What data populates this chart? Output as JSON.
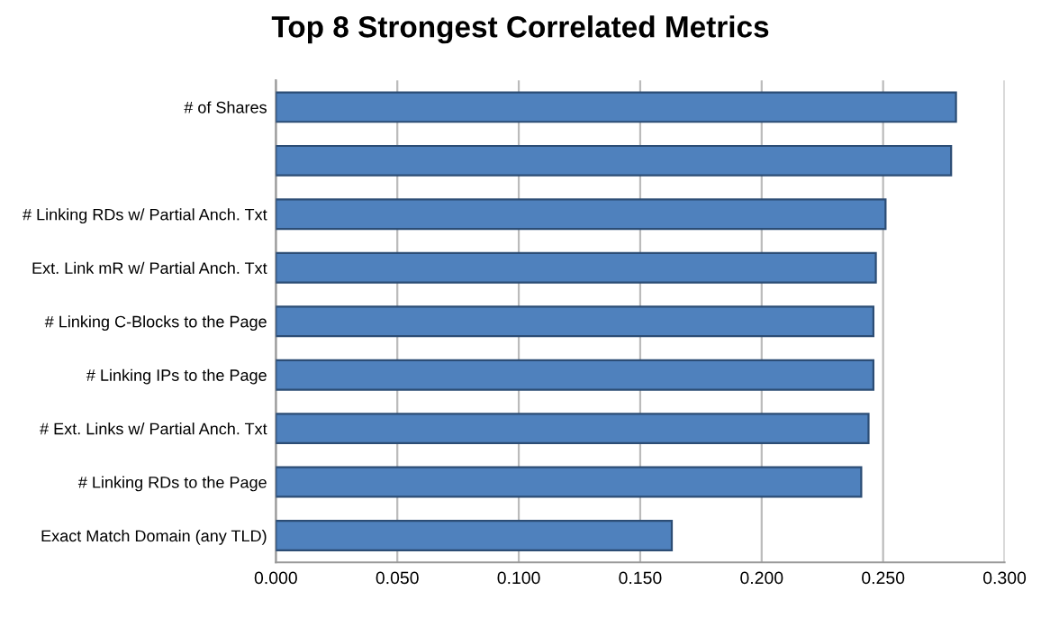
{
  "chart_data": {
    "type": "bar",
    "orientation": "horizontal",
    "title": "Top 8 Strongest Correlated Metrics",
    "categories": [
      "# of Shares",
      null,
      "# Linking RDs w/ Partial Anch. Txt",
      "Ext. Link mR w/ Partial Anch. Txt",
      "# Linking C-Blocks to the Page",
      "# Linking IPs to the Page",
      "# Ext. Links w/ Partial Anch. Txt",
      "# Linking RDs to the Page",
      "Exact Match Domain (any TLD)"
    ],
    "values": [
      0.28,
      0.278,
      0.251,
      0.247,
      0.246,
      0.246,
      0.244,
      0.241,
      0.163
    ],
    "color": "#4f81bd",
    "xlim": [
      0,
      0.3
    ],
    "xticks": [
      {
        "value": 0,
        "label": "0.000"
      },
      {
        "value": 0.05,
        "label": "0.050"
      },
      {
        "value": 0.1,
        "label": "0.100"
      },
      {
        "value": 0.15,
        "label": "0.150"
      },
      {
        "value": 0.2,
        "label": "0.200"
      },
      {
        "value": 0.25,
        "label": "0.250"
      },
      {
        "value": 0.3,
        "label": "0.300"
      }
    ],
    "grid": "x",
    "legend": false
  }
}
